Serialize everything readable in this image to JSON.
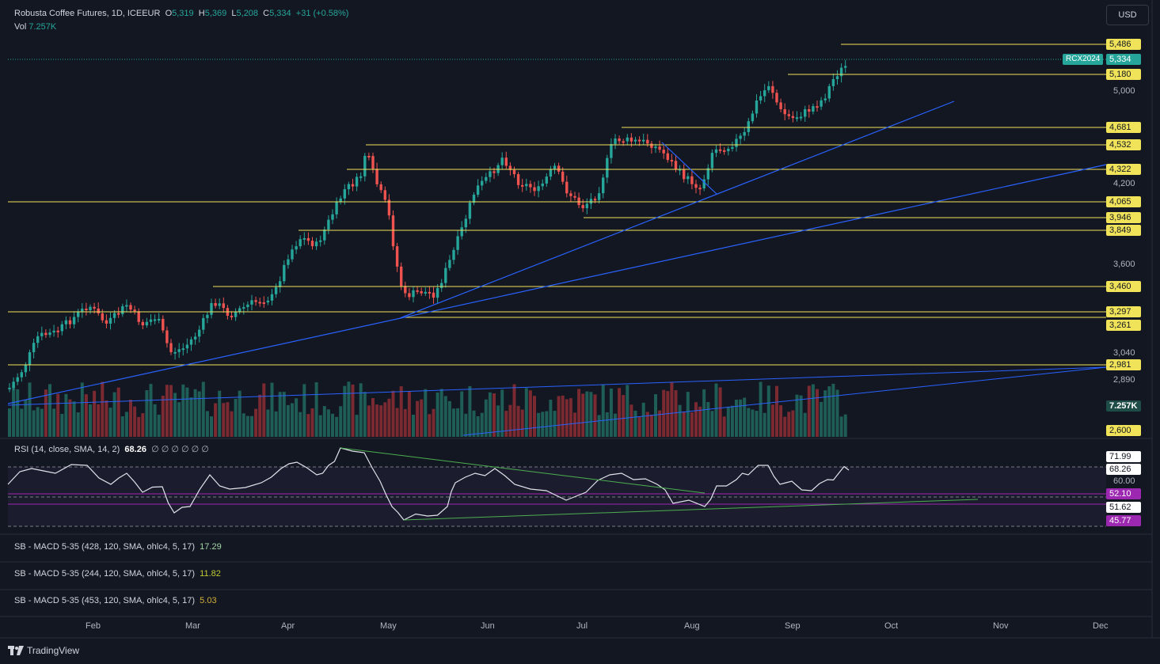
{
  "legend": {
    "symbol": "Robusta Coffee Futures, 1D, ICEEUR",
    "o_key": "O",
    "o_val": "5,319",
    "h_key": "H",
    "h_val": "5,369",
    "l_key": "L",
    "l_val": "5,208",
    "c_key": "C",
    "c_val": "5,334",
    "change": "+31 (+0.58%)",
    "vol_key": "Vol",
    "vol_val": "7.257K"
  },
  "currency": "USD",
  "ticker_label": "RCX2024",
  "last_price": "5,334",
  "volume_badge": "7.257K",
  "axis_bottom_label": "2,600",
  "y_ticks": [
    "5,000",
    "4,200",
    "3,600",
    "3,040",
    "2,890"
  ],
  "levels": [
    "5,486",
    "5,180",
    "4,681",
    "4,532",
    "4,322",
    "4,065",
    "3,946",
    "3,849",
    "3,460",
    "3,297",
    "3,261",
    "2,981"
  ],
  "rsi": {
    "legend": "RSI (14, close, SMA, 14, 2)",
    "value": "68.26",
    "nulls": "∅ ∅ ∅ ∅ ∅ ∅",
    "labels": [
      "71.99",
      "68.26",
      "60.00",
      "52.10",
      "51.62",
      "45.77"
    ]
  },
  "macd": [
    {
      "legend": "SB - MACD 5-35 (428, 120, SMA, ohlc4, 5, 17)",
      "value": "17.29",
      "color": "#a5d6a7"
    },
    {
      "legend": "SB - MACD 5-35 (244, 120, SMA, ohlc4, 5, 17)",
      "value": "11.82",
      "color": "#c0ca33"
    },
    {
      "legend": "SB - MACD 5-35 (453, 120, SMA, ohlc4, 5, 17)",
      "value": "5.03",
      "color": "#d4b03a"
    }
  ],
  "x_axis": [
    "Feb",
    "Mar",
    "Apr",
    "May",
    "Jun",
    "Jul",
    "Aug",
    "Sep",
    "Oct",
    "Nov",
    "Dec"
  ],
  "brand": "TradingView",
  "colors": {
    "up": "#26a69a",
    "down": "#ef5350",
    "level": "#f0e35a",
    "trend": "#2962ff",
    "rsi_band": "#7e57c2"
  }
}
